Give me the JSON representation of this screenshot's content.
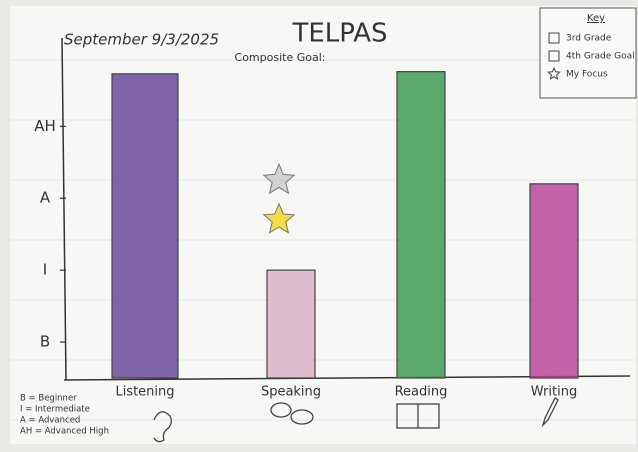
{
  "chart_data": {
    "type": "bar",
    "title": "TELPAS",
    "date": "September 9/3/2025",
    "subtitle": "Composite Goal:",
    "categories": [
      "Listening",
      "Speaking",
      "Reading",
      "Writing"
    ],
    "series": [
      {
        "name": "3rd Grade",
        "colors": [
          "#6a4a9a",
          "#d9b3c4",
          "#3f9a55",
          "#b8489a"
        ],
        "values": [
          4.73,
          2.0,
          4.76,
          3.2
        ]
      },
      {
        "name": "4th Grade Goal",
        "color": "#b0b0b0",
        "values": [
          null,
          3.25,
          null,
          null
        ]
      },
      {
        "name": "My Focus",
        "color": "#f2dd45",
        "values": [
          null,
          2.7,
          null,
          null
        ]
      }
    ],
    "legend_title": "Key",
    "legend_position": "upper right",
    "ylim": [
      0.5,
      5.2
    ],
    "yticks": [
      {
        "value": 1,
        "label": "B"
      },
      {
        "value": 2,
        "label": "I"
      },
      {
        "value": 3,
        "label": "A"
      },
      {
        "value": 4,
        "label": "AH"
      }
    ],
    "level_key": [
      "B = Beginner",
      "I = Intermediate",
      "A = Advanced",
      "AH = Advanced High"
    ]
  }
}
